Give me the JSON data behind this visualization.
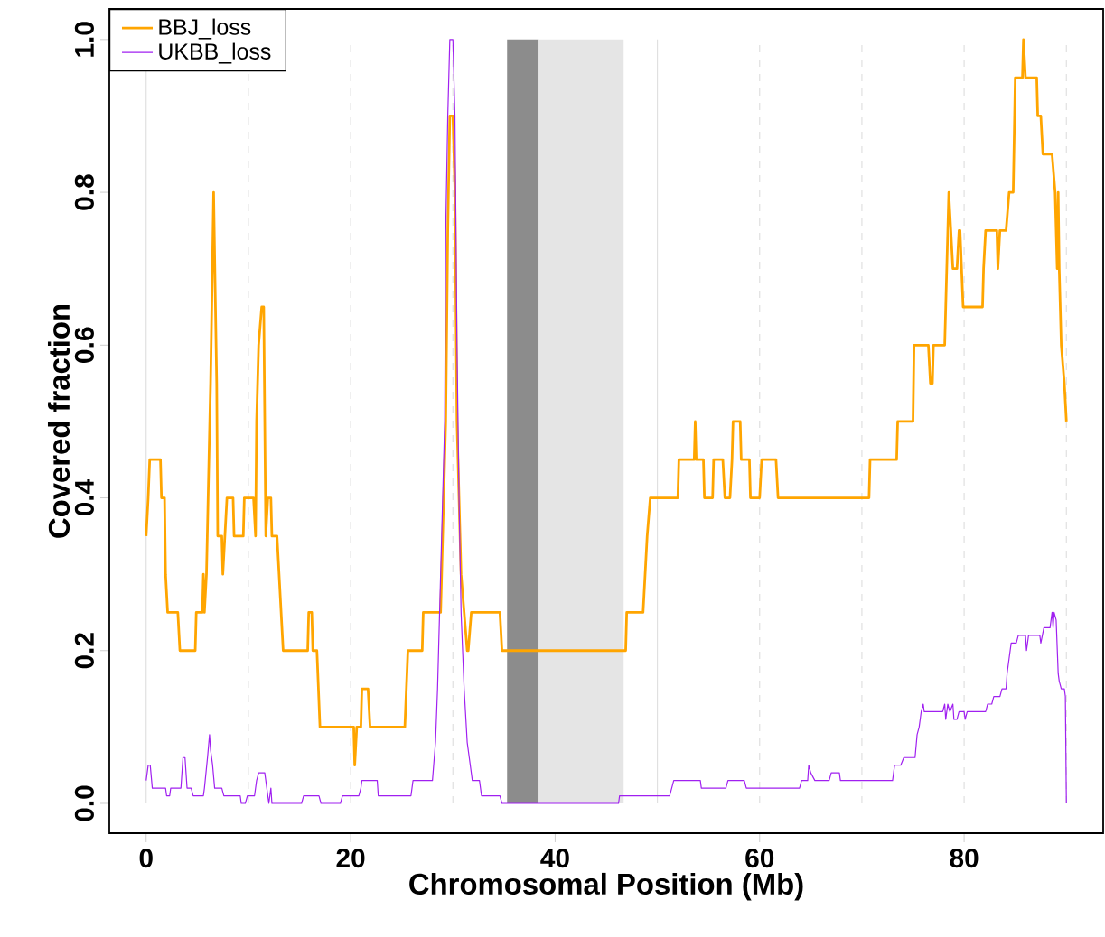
{
  "chart_data": {
    "type": "line",
    "xlabel": "Chromosomal Position (Mb)",
    "ylabel": "Covered fraction",
    "xlim": [
      -3.6,
      93.6
    ],
    "ylim": [
      -0.039,
      1.04
    ],
    "xticks": [
      0,
      20,
      40,
      60,
      80
    ],
    "yticks": [
      {
        "value": 0,
        "label": "0.0"
      },
      {
        "value": 0.2,
        "label": "0.2"
      },
      {
        "value": 0.4,
        "label": "0.4"
      },
      {
        "value": 0.6,
        "label": "0.6"
      },
      {
        "value": 0.8,
        "label": "0.8"
      },
      {
        "value": 1,
        "label": "1.0"
      }
    ],
    "legend": "top left",
    "ref_lines": [
      {
        "axis": "x",
        "value": 0,
        "color": "#e0e0e0",
        "line_style": "solid"
      },
      {
        "axis": "x",
        "value": 10,
        "color": "#e0e0e0",
        "line_style": "dashed"
      },
      {
        "axis": "x",
        "value": 20,
        "color": "#e0e0e0",
        "line_style": "dashed"
      },
      {
        "axis": "x",
        "value": 30,
        "color": "#e0e0e0",
        "line_style": "dashed"
      },
      {
        "axis": "x",
        "value": 50,
        "color": "#e0e0e0",
        "line_style": "solid"
      },
      {
        "axis": "x",
        "value": 60,
        "color": "#e0e0e0",
        "line_style": "dashed"
      },
      {
        "axis": "x",
        "value": 70,
        "color": "#e0e0e0",
        "line_style": "dashed"
      },
      {
        "axis": "x",
        "value": 80,
        "color": "#e0e0e0",
        "line_style": "dashed"
      },
      {
        "axis": "x",
        "value": 90,
        "color": "#e0e0e0",
        "line_style": "dashed"
      }
    ],
    "bands": [
      {
        "axis": "x",
        "from": 35.3,
        "to": 38.4,
        "color": "#8c8c8c"
      },
      {
        "axis": "x",
        "from": 38.4,
        "to": 46.7,
        "color": "#e5e5e5"
      }
    ],
    "series": [
      {
        "name": "BBJ_loss",
        "color": "#ffa500",
        "x": [
          0.0,
          0.2,
          0.35,
          1.4,
          1.5,
          1.8,
          1.9,
          2.1,
          3.1,
          3.3,
          4.8,
          4.9,
          5.5,
          5.6,
          5.7,
          5.9,
          6.3,
          6.6,
          6.9,
          7.0,
          7.4,
          7.5,
          7.7,
          7.9,
          8.5,
          8.6,
          9.5,
          9.6,
          10.5,
          10.7,
          10.8,
          11.0,
          11.3,
          11.5,
          11.7,
          11.9,
          12.2,
          12.3,
          12.8,
          13.0,
          13.2,
          13.4,
          15.8,
          15.9,
          16.2,
          16.3,
          16.7,
          17.0,
          20.3,
          20.4,
          20.6,
          21.0,
          21.1,
          21.7,
          21.9,
          25.3,
          25.6,
          27.0,
          27.1,
          28.8,
          28.9,
          29.3,
          29.5,
          29.7,
          30.0,
          30.2,
          30.4,
          30.7,
          30.8,
          31.1,
          31.4,
          31.5,
          31.8,
          34.6,
          34.8,
          46.9,
          47.0,
          48.6,
          48.8,
          49.0,
          49.3,
          52.0,
          52.1,
          53.6,
          53.7,
          53.8,
          54.5,
          54.6,
          55.4,
          55.5,
          56.4,
          56.6,
          57.1,
          57.3,
          57.4,
          58.1,
          58.2,
          59.0,
          59.1,
          60.0,
          60.2,
          61.6,
          61.8,
          70.7,
          70.8,
          73.4,
          73.5,
          75.0,
          75.1,
          76.5,
          76.7,
          76.9,
          77.0,
          78.1,
          78.2,
          78.5,
          78.7,
          78.9,
          79.3,
          79.5,
          79.6,
          79.9,
          81.8,
          81.9,
          82.1,
          83.2,
          83.3,
          83.5,
          84.1,
          84.4,
          84.8,
          85.0,
          85.7,
          85.8,
          86.0,
          87.1,
          87.2,
          87.5,
          87.7,
          88.6,
          88.9,
          89.1,
          89.2,
          89.3,
          89.5,
          89.8,
          90.0
        ],
        "values": [
          0.35,
          0.4,
          0.45,
          0.45,
          0.4,
          0.4,
          0.3,
          0.25,
          0.25,
          0.2,
          0.2,
          0.25,
          0.25,
          0.3,
          0.25,
          0.3,
          0.55,
          0.8,
          0.55,
          0.35,
          0.35,
          0.3,
          0.35,
          0.4,
          0.4,
          0.35,
          0.35,
          0.4,
          0.4,
          0.35,
          0.5,
          0.6,
          0.65,
          0.65,
          0.35,
          0.4,
          0.4,
          0.35,
          0.35,
          0.3,
          0.25,
          0.2,
          0.2,
          0.25,
          0.25,
          0.2,
          0.2,
          0.1,
          0.1,
          0.05,
          0.1,
          0.1,
          0.15,
          0.15,
          0.1,
          0.1,
          0.2,
          0.2,
          0.25,
          0.25,
          0.3,
          0.5,
          0.75,
          0.9,
          0.9,
          0.8,
          0.5,
          0.35,
          0.3,
          0.25,
          0.2,
          0.2,
          0.25,
          0.25,
          0.2,
          0.2,
          0.25,
          0.25,
          0.3,
          0.35,
          0.4,
          0.4,
          0.45,
          0.45,
          0.5,
          0.45,
          0.45,
          0.4,
          0.4,
          0.45,
          0.45,
          0.4,
          0.4,
          0.45,
          0.5,
          0.5,
          0.45,
          0.45,
          0.4,
          0.4,
          0.45,
          0.45,
          0.4,
          0.4,
          0.45,
          0.45,
          0.5,
          0.5,
          0.6,
          0.6,
          0.55,
          0.55,
          0.6,
          0.6,
          0.65,
          0.8,
          0.75,
          0.7,
          0.7,
          0.75,
          0.75,
          0.65,
          0.65,
          0.7,
          0.75,
          0.75,
          0.7,
          0.75,
          0.75,
          0.8,
          0.8,
          0.95,
          0.95,
          1.0,
          0.95,
          0.95,
          0.9,
          0.9,
          0.85,
          0.85,
          0.8,
          0.7,
          0.8,
          0.7,
          0.6,
          0.55,
          0.5
        ]
      },
      {
        "name": "UKBB_loss",
        "color": "#a020f0",
        "x": [
          0.0,
          0.2,
          0.4,
          0.6,
          1.9,
          2.0,
          2.3,
          2.4,
          3.4,
          3.6,
          3.8,
          4.0,
          4.4,
          4.6,
          5.6,
          5.7,
          6.0,
          6.2,
          6.3,
          6.5,
          6.7,
          7.4,
          7.6,
          9.2,
          9.3,
          9.7,
          9.9,
          10.6,
          10.8,
          11.0,
          11.6,
          11.8,
          12.0,
          12.2,
          12.3,
          12.6,
          15.2,
          15.4,
          16.9,
          17.1,
          19.0,
          19.2,
          20.8,
          21.0,
          21.1,
          22.6,
          22.7,
          25.9,
          26.1,
          28.0,
          28.3,
          28.5,
          28.8,
          29.2,
          29.3,
          29.5,
          29.7,
          30.0,
          30.2,
          30.4,
          30.6,
          30.8,
          31.1,
          31.4,
          31.6,
          31.9,
          32.6,
          32.8,
          34.6,
          34.8,
          46.2,
          46.3,
          51.2,
          51.4,
          51.6,
          54.2,
          54.3,
          56.7,
          56.9,
          58.5,
          58.7,
          63.9,
          64.1,
          64.7,
          64.8,
          65.0,
          65.4,
          66.8,
          67.0,
          67.8,
          67.9,
          73.0,
          73.2,
          73.8,
          74.1,
          75.2,
          75.4,
          75.6,
          75.8,
          76.0,
          76.1,
          77.9,
          78.1,
          78.2,
          78.4,
          78.6,
          78.9,
          79.0,
          79.3,
          79.5,
          80.0,
          80.1,
          80.3,
          82.1,
          82.3,
          82.7,
          82.9,
          83.5,
          83.7,
          84.1,
          84.2,
          84.4,
          84.6,
          85.1,
          85.3,
          86.0,
          86.1,
          86.3,
          87.4,
          87.5,
          87.8,
          88.4,
          88.6,
          88.7,
          88.8,
          89.0,
          89.2,
          89.3,
          89.5,
          89.8,
          89.9,
          90.0
        ],
        "values": [
          0.03,
          0.05,
          0.05,
          0.02,
          0.02,
          0.01,
          0.01,
          0.02,
          0.02,
          0.06,
          0.06,
          0.02,
          0.02,
          0.01,
          0.01,
          0.02,
          0.06,
          0.09,
          0.07,
          0.05,
          0.02,
          0.02,
          0.01,
          0.01,
          0.0,
          0.0,
          0.01,
          0.01,
          0.03,
          0.04,
          0.04,
          0.02,
          0.0,
          0.02,
          0.0,
          0.0,
          0.0,
          0.01,
          0.01,
          0.0,
          0.0,
          0.01,
          0.01,
          0.02,
          0.03,
          0.03,
          0.01,
          0.01,
          0.03,
          0.03,
          0.08,
          0.15,
          0.3,
          0.5,
          0.75,
          0.9,
          1.0,
          1.0,
          0.9,
          0.6,
          0.4,
          0.25,
          0.15,
          0.08,
          0.06,
          0.03,
          0.03,
          0.01,
          0.01,
          0.0,
          0.0,
          0.01,
          0.01,
          0.02,
          0.03,
          0.03,
          0.02,
          0.02,
          0.03,
          0.03,
          0.02,
          0.02,
          0.03,
          0.03,
          0.05,
          0.04,
          0.03,
          0.03,
          0.04,
          0.04,
          0.03,
          0.03,
          0.05,
          0.05,
          0.06,
          0.06,
          0.09,
          0.1,
          0.12,
          0.13,
          0.12,
          0.12,
          0.13,
          0.11,
          0.13,
          0.12,
          0.13,
          0.11,
          0.11,
          0.12,
          0.12,
          0.11,
          0.12,
          0.12,
          0.13,
          0.13,
          0.14,
          0.14,
          0.15,
          0.15,
          0.17,
          0.19,
          0.21,
          0.21,
          0.22,
          0.22,
          0.2,
          0.22,
          0.22,
          0.21,
          0.23,
          0.23,
          0.25,
          0.23,
          0.25,
          0.24,
          0.17,
          0.16,
          0.15,
          0.15,
          0.14,
          0.0
        ]
      }
    ]
  }
}
